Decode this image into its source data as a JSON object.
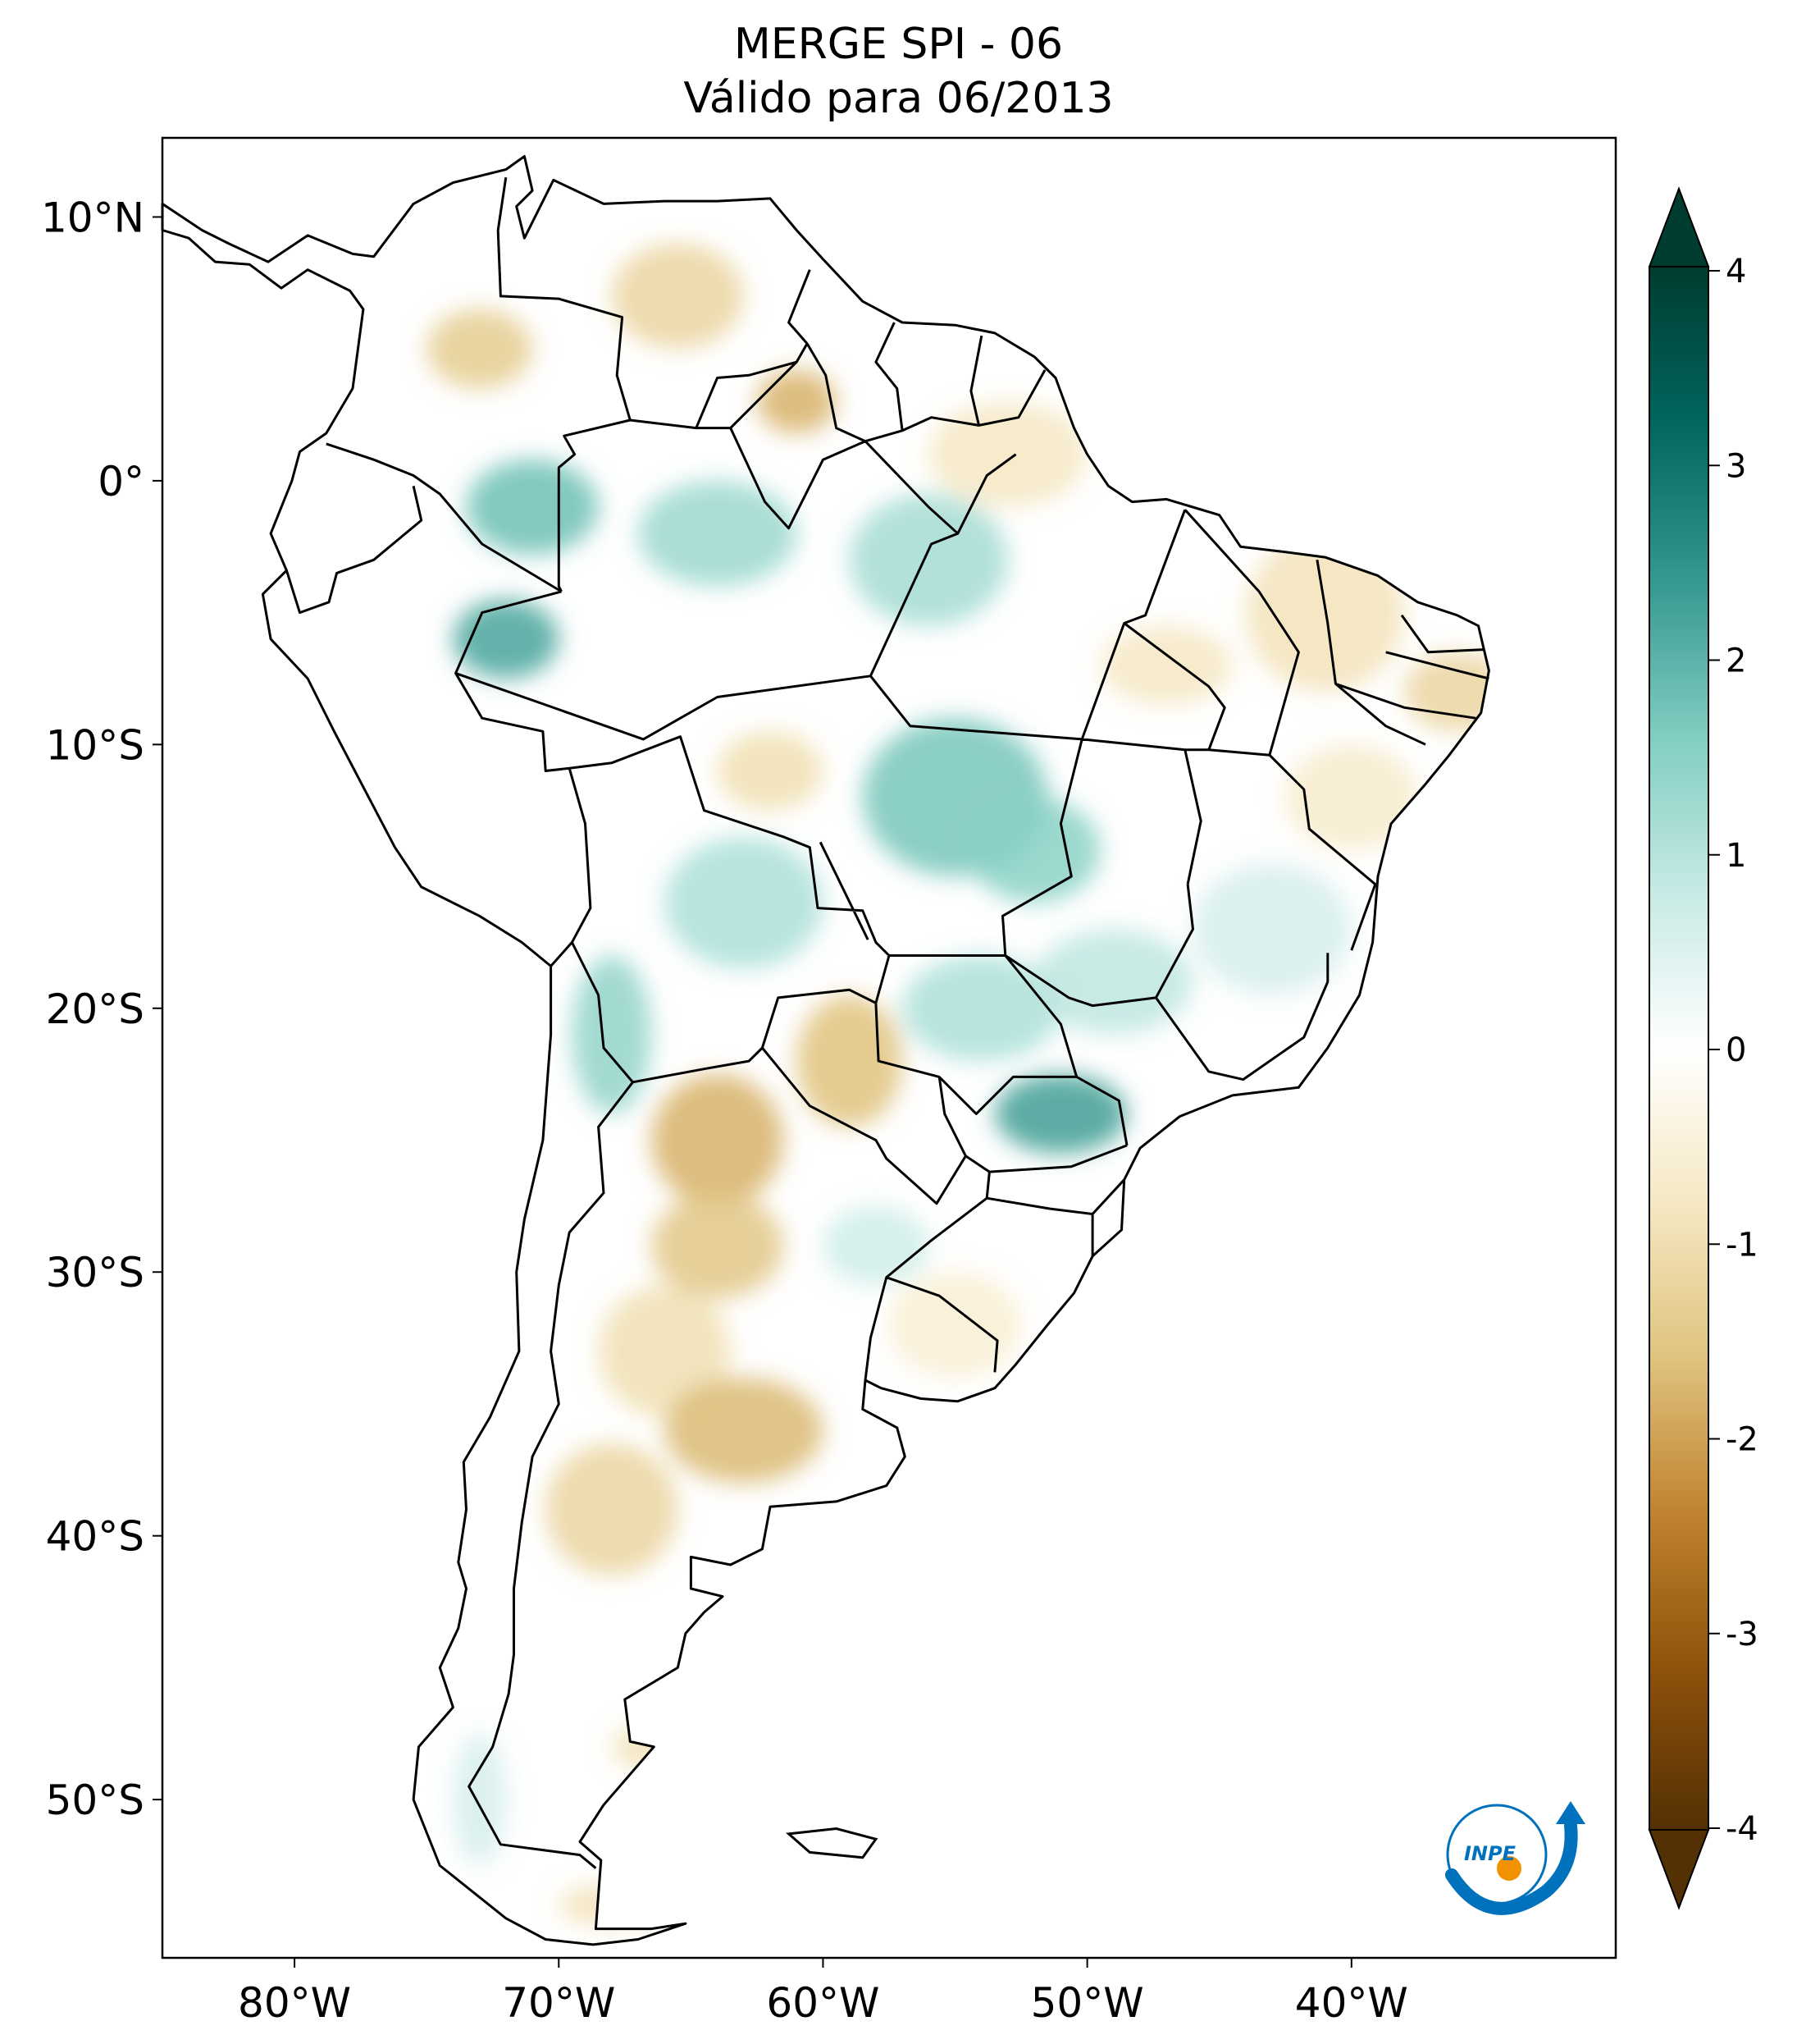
{
  "title": {
    "line1": "MERGE   SPI - 06",
    "line2": "Válido para 06/2013"
  },
  "map": {
    "projection": "PlateCarree",
    "lon_range": [
      -85,
      -30
    ],
    "lat_range": [
      -56,
      13
    ],
    "lon_ticks": [
      {
        "value": -80,
        "label": "80°W"
      },
      {
        "value": -70,
        "label": "70°W"
      },
      {
        "value": -60,
        "label": "60°W"
      },
      {
        "value": -50,
        "label": "50°W"
      },
      {
        "value": -40,
        "label": "40°W"
      }
    ],
    "lat_ticks": [
      {
        "value": 10,
        "label": "10°N"
      },
      {
        "value": 0,
        "label": "0°"
      },
      {
        "value": -10,
        "label": "10°S"
      },
      {
        "value": -20,
        "label": "20°S"
      },
      {
        "value": -30,
        "label": "30°S"
      },
      {
        "value": -40,
        "label": "40°S"
      },
      {
        "value": -50,
        "label": "50°S"
      }
    ],
    "anomaly_patches": [
      {
        "lon": -65.5,
        "lat": 7,
        "rx": 2.5,
        "ry": 2,
        "v": -1.2
      },
      {
        "lon": -73,
        "lat": 5,
        "rx": 2,
        "ry": 1.5,
        "v": -1.4
      },
      {
        "lon": -61,
        "lat": 3,
        "rx": 1.5,
        "ry": 1.2,
        "v": -1.8
      },
      {
        "lon": -53,
        "lat": 1,
        "rx": 3,
        "ry": 2,
        "v": -0.8
      },
      {
        "lon": -71,
        "lat": -1,
        "rx": 2.5,
        "ry": 1.8,
        "v": 1.8
      },
      {
        "lon": -72,
        "lat": -6,
        "rx": 2,
        "ry": 1.5,
        "v": 2.2
      },
      {
        "lon": -64,
        "lat": -2,
        "rx": 3,
        "ry": 2,
        "v": 1.3
      },
      {
        "lon": -56,
        "lat": -3,
        "rx": 3,
        "ry": 2.5,
        "v": 1.2
      },
      {
        "lon": -47,
        "lat": -7,
        "rx": 2.5,
        "ry": 1.5,
        "v": -0.8
      },
      {
        "lon": -41,
        "lat": -5,
        "rx": 3,
        "ry": 3,
        "v": -0.9
      },
      {
        "lon": -36,
        "lat": -8,
        "rx": 2,
        "ry": 1.5,
        "v": -1.2
      },
      {
        "lon": -55,
        "lat": -12,
        "rx": 3.5,
        "ry": 3,
        "v": 1.7
      },
      {
        "lon": -52,
        "lat": -14,
        "rx": 2.5,
        "ry": 2,
        "v": 1.5
      },
      {
        "lon": -62,
        "lat": -11,
        "rx": 2,
        "ry": 1.5,
        "v": -1.0
      },
      {
        "lon": -63,
        "lat": -16,
        "rx": 3,
        "ry": 2.5,
        "v": 1.1
      },
      {
        "lon": -68,
        "lat": -21,
        "rx": 1.5,
        "ry": 3,
        "v": 1.4
      },
      {
        "lon": -51,
        "lat": -24,
        "rx": 2.5,
        "ry": 1.5,
        "v": 2.3
      },
      {
        "lon": -54,
        "lat": -20,
        "rx": 3,
        "ry": 2,
        "v": 1.1
      },
      {
        "lon": -49,
        "lat": -19,
        "rx": 3,
        "ry": 2,
        "v": 0.9
      },
      {
        "lon": -43,
        "lat": -17,
        "rx": 3,
        "ry": 2.5,
        "v": 0.6
      },
      {
        "lon": -40,
        "lat": -12,
        "rx": 2.5,
        "ry": 2,
        "v": -0.7
      },
      {
        "lon": -59,
        "lat": -22,
        "rx": 2,
        "ry": 2.5,
        "v": -1.6
      },
      {
        "lon": -64,
        "lat": -25,
        "rx": 2.5,
        "ry": 2.5,
        "v": -1.8
      },
      {
        "lon": -64,
        "lat": -29,
        "rx": 2.5,
        "ry": 2,
        "v": -1.5
      },
      {
        "lon": -66,
        "lat": -33,
        "rx": 2.5,
        "ry": 2.5,
        "v": -1.0
      },
      {
        "lon": -63,
        "lat": -36,
        "rx": 3,
        "ry": 2,
        "v": -1.7
      },
      {
        "lon": -68,
        "lat": -39,
        "rx": 2.5,
        "ry": 2.5,
        "v": -1.2
      },
      {
        "lon": -58,
        "lat": -29,
        "rx": 2,
        "ry": 1.5,
        "v": 0.7
      },
      {
        "lon": -55,
        "lat": -32,
        "rx": 2.5,
        "ry": 2,
        "v": -0.6
      },
      {
        "lon": -66,
        "lat": -48,
        "rx": 2,
        "ry": 1,
        "v": -0.9
      },
      {
        "lon": -68,
        "lat": -54,
        "rx": 2,
        "ry": 0.8,
        "v": -0.9
      },
      {
        "lon": -73,
        "lat": -50,
        "rx": 1,
        "ry": 2.5,
        "v": 0.6
      }
    ]
  },
  "colorbar": {
    "range": [
      -4,
      4
    ],
    "tick_labels": [
      "4",
      "3",
      "2",
      "1",
      "0",
      "-1",
      "-2",
      "-3",
      "-4"
    ],
    "colors": [
      "#543005",
      "#8c510a",
      "#bf812d",
      "#dfc27d",
      "#f6e8c3",
      "#ffffff",
      "#c7eae5",
      "#80cdc1",
      "#35978f",
      "#01665e",
      "#003c30"
    ]
  },
  "logo": {
    "text": "INPE",
    "colors": [
      "#0071bc",
      "#f39200"
    ]
  }
}
